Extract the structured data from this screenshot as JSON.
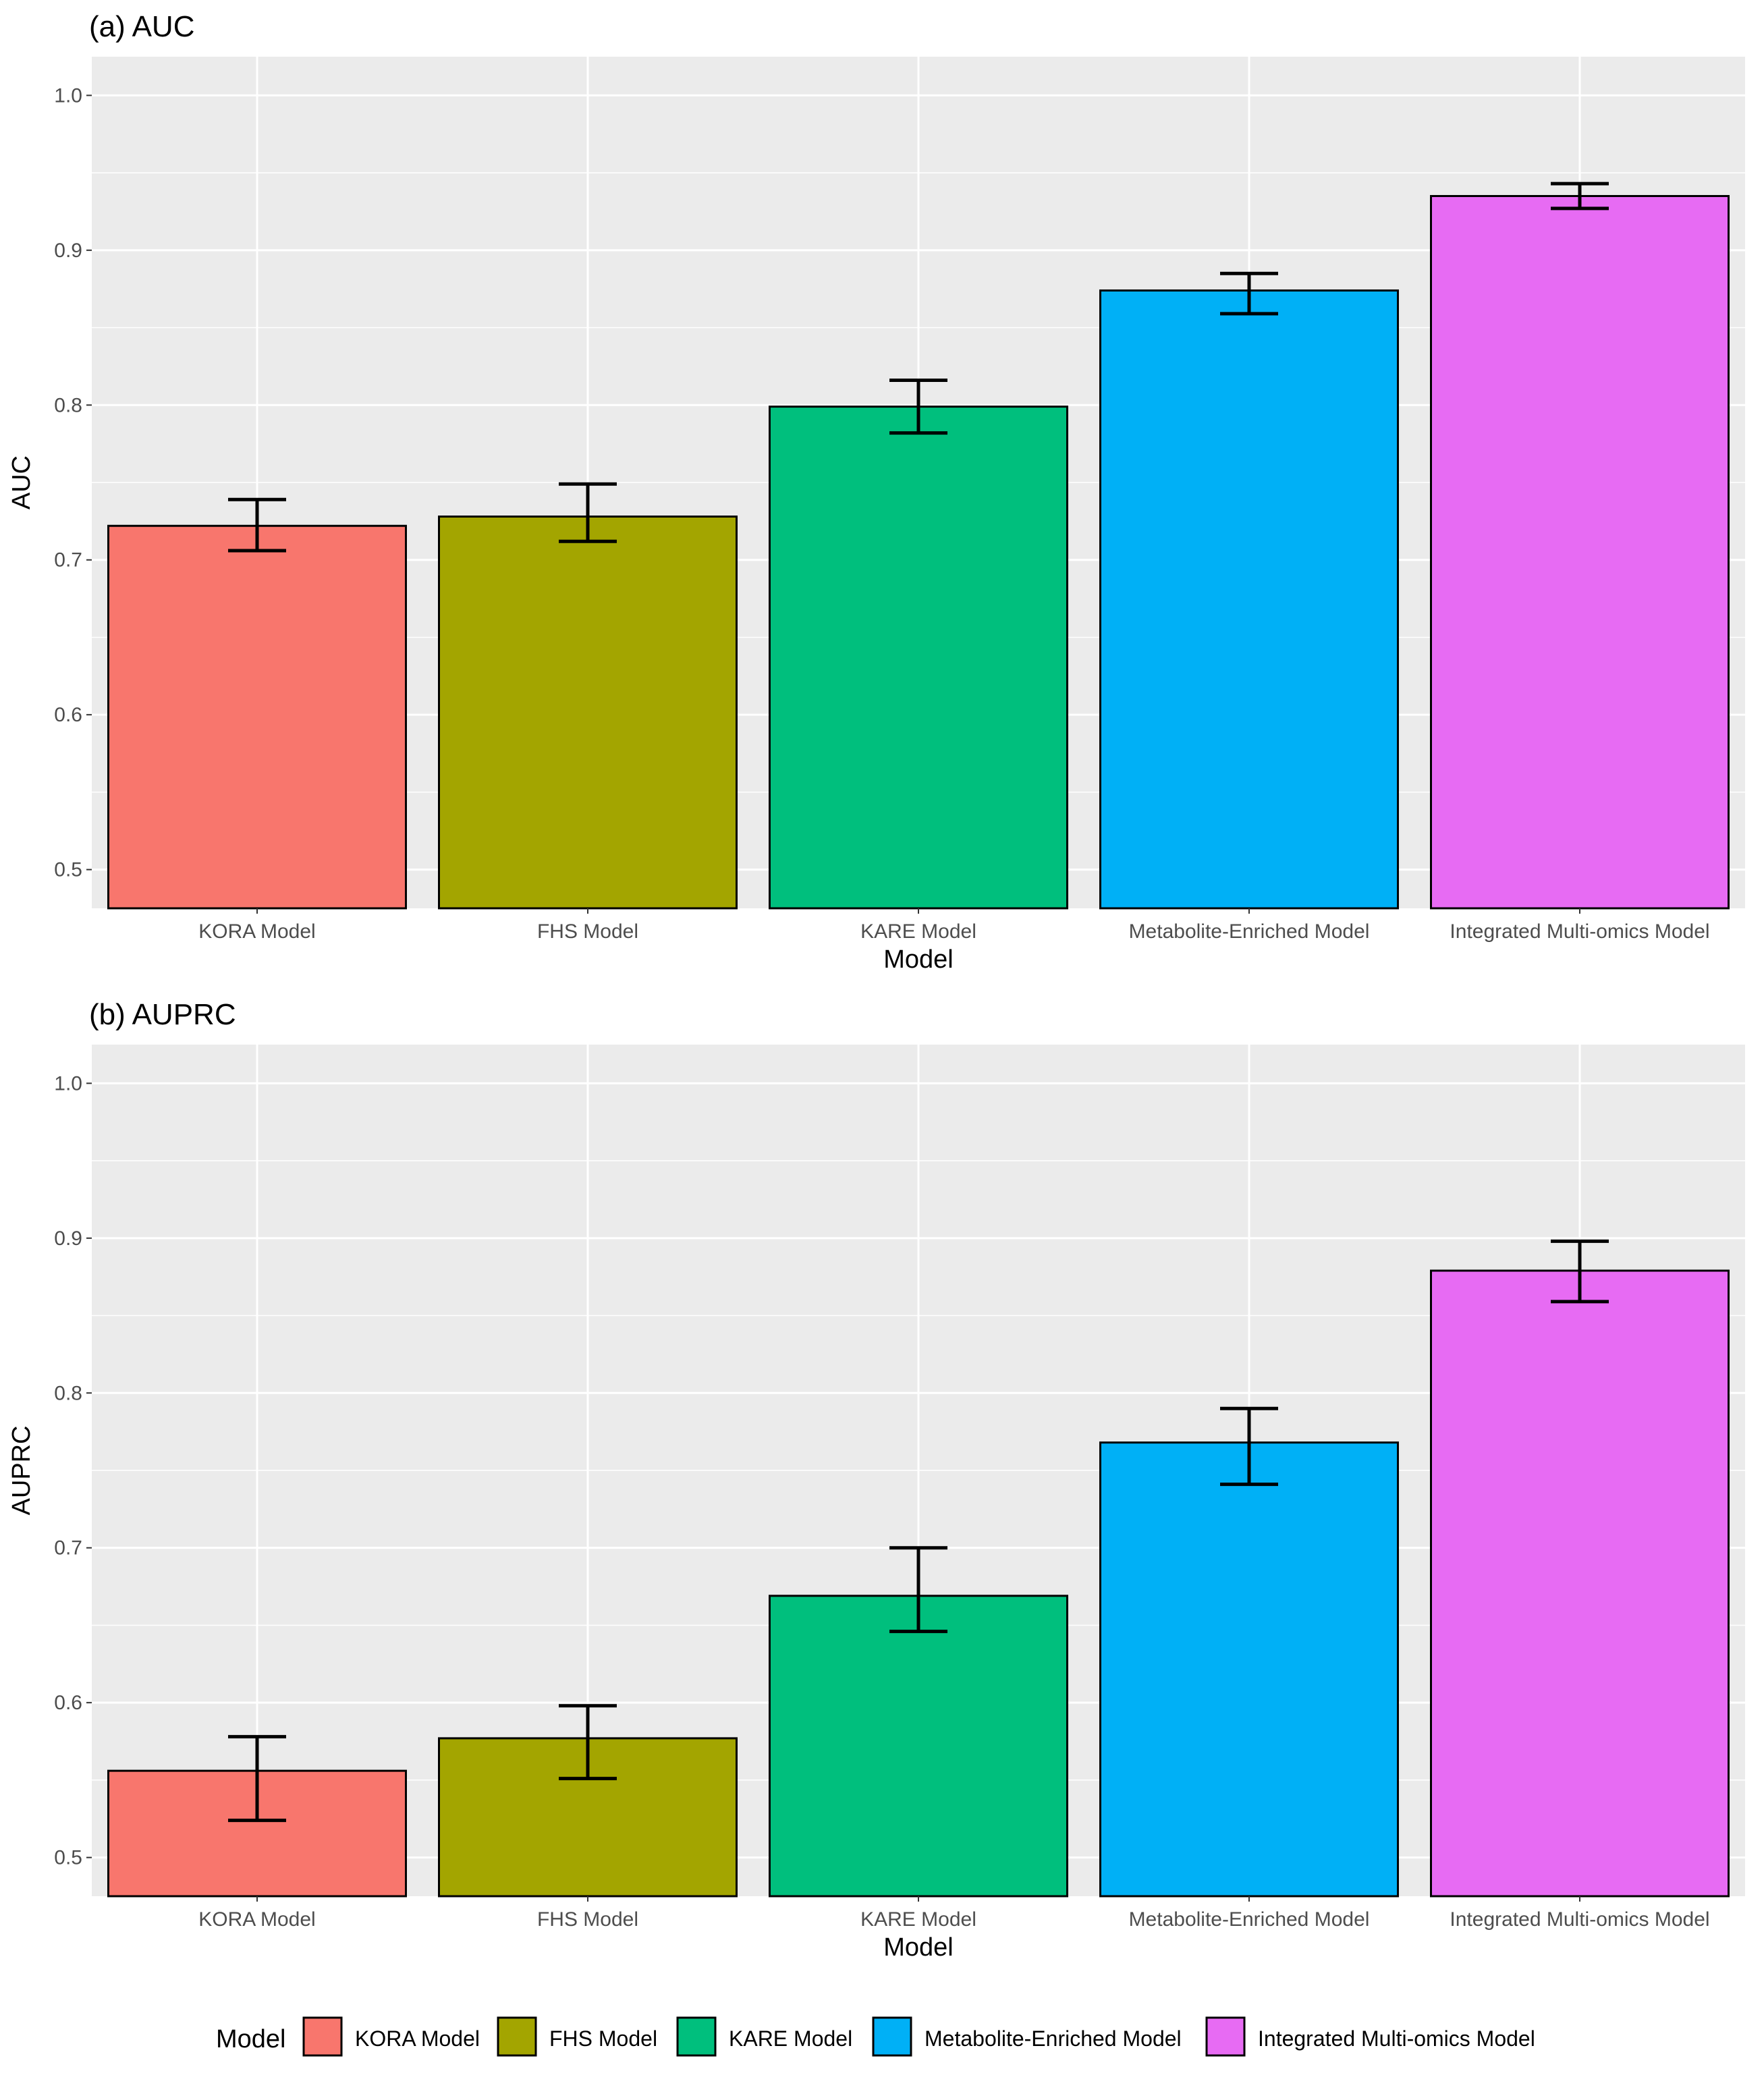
{
  "chart_data": [
    {
      "type": "bar",
      "title": "(a) AUC",
      "xlabel": "Model",
      "ylabel": "AUC",
      "ylim": [
        0.475,
        1.025
      ],
      "yticks": [
        0.5,
        0.6,
        0.7,
        0.8,
        0.9,
        1.0
      ],
      "ytick_labels": [
        "0.5",
        "0.6",
        "0.7",
        "0.8",
        "0.9",
        "1.0"
      ],
      "grid": true,
      "categories": [
        "KORA Model",
        "FHS Model",
        "KARE Model",
        "Metabolite-Enriched Model",
        "Integrated Multi-omics Model"
      ],
      "values": [
        0.722,
        0.728,
        0.799,
        0.874,
        0.935
      ],
      "error_low": [
        0.706,
        0.712,
        0.782,
        0.859,
        0.927
      ],
      "error_high": [
        0.739,
        0.749,
        0.816,
        0.885,
        0.943
      ]
    },
    {
      "type": "bar",
      "title": "(b) AUPRC",
      "xlabel": "Model",
      "ylabel": "AUPRC",
      "ylim": [
        0.475,
        1.025
      ],
      "yticks": [
        0.5,
        0.6,
        0.7,
        0.8,
        0.9,
        1.0
      ],
      "ytick_labels": [
        "0.5",
        "0.6",
        "0.7",
        "0.8",
        "0.9",
        "1.0"
      ],
      "grid": true,
      "categories": [
        "KORA Model",
        "FHS Model",
        "KARE Model",
        "Metabolite-Enriched Model",
        "Integrated Multi-omics Model"
      ],
      "values": [
        0.556,
        0.577,
        0.669,
        0.768,
        0.879
      ],
      "error_low": [
        0.524,
        0.551,
        0.646,
        0.741,
        0.859
      ],
      "error_high": [
        0.578,
        0.598,
        0.7,
        0.79,
        0.898
      ]
    }
  ],
  "legend": {
    "title": "Model",
    "position": "bottom",
    "items": [
      {
        "label": "KORA Model",
        "color": "#F8766D"
      },
      {
        "label": "FHS Model",
        "color": "#A3A500"
      },
      {
        "label": "KARE Model",
        "color": "#00BF7D"
      },
      {
        "label": "Metabolite-Enriched Model",
        "color": "#00B0F6"
      },
      {
        "label": "Integrated Multi-omics Model",
        "color": "#E76BF3"
      }
    ]
  }
}
